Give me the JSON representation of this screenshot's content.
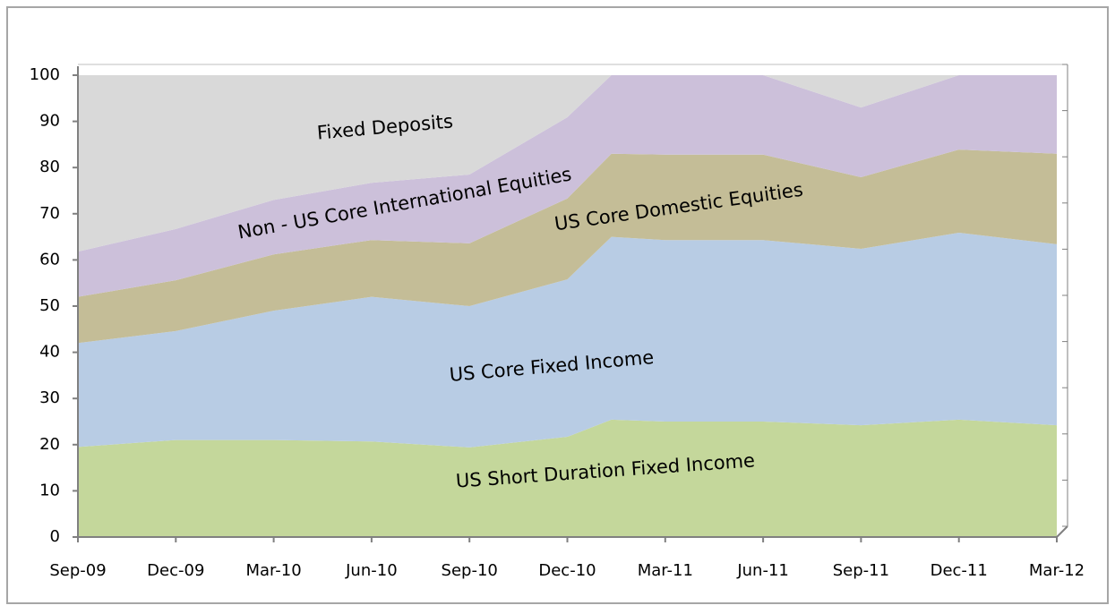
{
  "chart_data": {
    "type": "stacked-area",
    "categories": [
      "Sep-09",
      "Dec-09",
      "Mar-10",
      "Jun-10",
      "Sep-10",
      "Dec-10",
      null,
      "Mar-11",
      "Jun-11",
      "Sep-11",
      "Dec-11",
      "Mar-12"
    ],
    "series": [
      {
        "name": "US Short Duration Fixed Income",
        "color": "#c4d79b",
        "values": [
          19.5,
          21,
          21,
          20.7,
          19.4,
          21.7,
          25.4,
          25,
          25,
          24.2,
          25.4,
          24.2
        ]
      },
      {
        "name": "US Core Fixed Income",
        "color": "#b8cce4",
        "values": [
          22.5,
          23.6,
          28,
          31.3,
          30.6,
          34.1,
          39.6,
          39.3,
          39.3,
          38.2,
          40.5,
          39.2
        ]
      },
      {
        "name": "US Core Domestic Equities",
        "color": "#c4bd97",
        "values": [
          10,
          11,
          12.2,
          12.3,
          13.6,
          17.5,
          18,
          18.5,
          18.5,
          15.5,
          18,
          19.6
        ]
      },
      {
        "name": "Non - US Core International Equities",
        "color": "#ccc0da",
        "values": [
          9.8,
          11.1,
          11.8,
          12.4,
          14.9,
          17.6,
          17,
          17.2,
          17.2,
          15.1,
          16.1,
          17
        ]
      },
      {
        "name": "Fixed Deposits",
        "color": "#d9d9d9",
        "values": [
          38.2,
          33.3,
          27,
          23.3,
          21.5,
          9.1,
          0,
          0,
          0,
          7,
          0,
          0
        ]
      }
    ],
    "ylim": [
      0,
      100
    ],
    "yticks": [
      0,
      10,
      20,
      30,
      40,
      50,
      60,
      70,
      80,
      90,
      100
    ]
  }
}
